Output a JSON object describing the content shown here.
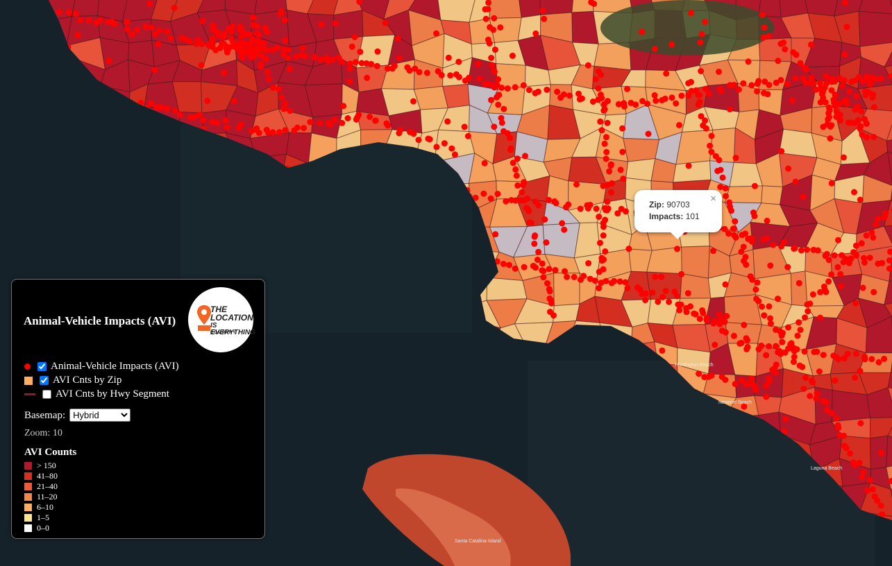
{
  "panel": {
    "title": "Animal-Vehicle Impacts (AVI)",
    "logo": {
      "line1": "THE",
      "line2": "LOCATION",
      "line3": "IS EVERYTHING",
      "line4": "COMPANY"
    },
    "layers": [
      {
        "label": "Animal-Vehicle Impacts (AVI)",
        "checked": true
      },
      {
        "label": "AVI Cnts by Zip",
        "checked": true
      },
      {
        "label": "AVI Cnts by Hwy Segment",
        "checked": false
      }
    ],
    "basemap": {
      "label": "Basemap:",
      "selected": "Hybrid"
    },
    "zoom": "Zoom: 10",
    "legend": {
      "title": "AVI Counts",
      "items": [
        {
          "label": "> 150",
          "color": "#b2182b"
        },
        {
          "label": "41–80",
          "color": "#d7301f"
        },
        {
          "label": "21–40",
          "color": "#ef5a3a"
        },
        {
          "label": "11–20",
          "color": "#f4874a"
        },
        {
          "label": "6–10",
          "color": "#fdae61"
        },
        {
          "label": "1–5",
          "color": "#fee391"
        },
        {
          "label": "0–0",
          "color": "#ffffff"
        }
      ]
    }
  },
  "popup": {
    "zip_label": "Zip:",
    "zip": "90703",
    "impacts_label": "Impacts:",
    "impacts": 101
  },
  "map_labels": [
    "Santa Catalina Island",
    "Huntington Beach",
    "Newport Beach",
    "Laguna Beach"
  ]
}
